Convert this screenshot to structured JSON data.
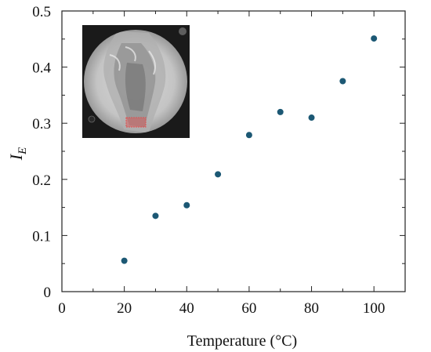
{
  "chart_data": {
    "type": "scatter",
    "title": "",
    "xlabel": "Temperature (°C)",
    "ylabel_main": "I",
    "ylabel_sub": "E",
    "xlim": [
      0,
      110
    ],
    "ylim": [
      0,
      0.5
    ],
    "xticks": [
      "0",
      "20",
      "40",
      "60",
      "80",
      "100"
    ],
    "xtick_values": [
      0,
      20,
      40,
      60,
      80,
      100
    ],
    "yticks": [
      "0",
      "0.1",
      "0.2",
      "0.3",
      "0.4",
      "0.5"
    ],
    "ytick_values": [
      0,
      0.1,
      0.2,
      0.3,
      0.4,
      0.5
    ],
    "grid": false,
    "marker_color": "#1c5874",
    "series": [
      {
        "x": [
          20,
          30,
          40,
          50,
          60,
          70,
          80,
          90,
          100
        ],
        "y": [
          0.055,
          0.135,
          0.154,
          0.209,
          0.279,
          0.32,
          0.31,
          0.375,
          0.451
        ]
      }
    ],
    "inset": {
      "description_icon": "flame-photo-inset",
      "highlight_color": "#e05050"
    }
  }
}
